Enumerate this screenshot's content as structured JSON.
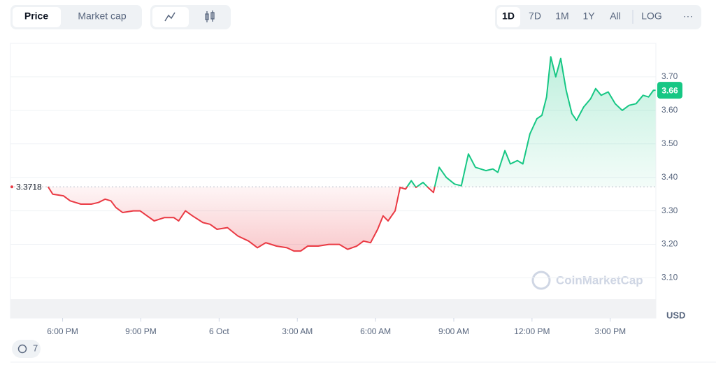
{
  "tabs": [
    "Price",
    "Market cap"
  ],
  "ranges": [
    "1D",
    "7D",
    "1M",
    "1Y",
    "All"
  ],
  "log_button": "LOG",
  "more_button": "···",
  "history_badge": "7",
  "chart_data": {
    "type": "line",
    "watermark": "CoinMarketCap",
    "y_axis_unit": "USD",
    "baseline": 3.3718,
    "current_price": 3.66,
    "x": [
      17.44,
      17.62,
      18.03,
      18.29,
      18.7,
      19.1,
      19.37,
      19.63,
      19.85,
      20.04,
      20.3,
      20.71,
      20.97,
      21.24,
      21.51,
      21.91,
      22.26,
      22.45,
      22.71,
      22.98,
      23.38,
      23.65,
      23.92,
      24.32,
      24.72,
      25.13,
      25.47,
      25.79,
      26.2,
      26.6,
      26.87,
      27.13,
      27.4,
      27.8,
      28.21,
      28.61,
      28.93,
      29.28,
      29.54,
      29.81,
      30.08,
      30.29,
      30.48,
      30.75,
      30.94,
      31.15,
      31.37,
      31.55,
      31.82,
      32.01,
      32.22,
      32.44,
      32.71,
      33.03,
      33.29,
      33.56,
      33.83,
      34.23,
      34.5,
      34.69,
      34.96,
      35.17,
      35.44,
      35.65,
      35.92,
      36.19,
      36.38,
      36.56,
      36.72,
      36.91,
      37.1,
      37.31,
      37.53,
      37.71,
      37.98,
      38.25,
      38.44,
      38.65,
      38.92,
      39.19,
      39.46,
      39.72,
      39.99,
      40.26,
      40.47,
      40.66,
      40.74
    ],
    "values": [
      3.372,
      3.35,
      3.345,
      3.33,
      3.32,
      3.32,
      3.325,
      3.335,
      3.33,
      3.31,
      3.295,
      3.3,
      3.3,
      3.285,
      3.27,
      3.28,
      3.28,
      3.27,
      3.3,
      3.285,
      3.265,
      3.26,
      3.245,
      3.25,
      3.225,
      3.21,
      3.19,
      3.205,
      3.195,
      3.19,
      3.18,
      3.18,
      3.195,
      3.195,
      3.2,
      3.2,
      3.185,
      3.195,
      3.21,
      3.205,
      3.245,
      3.285,
      3.27,
      3.3,
      3.37,
      3.365,
      3.39,
      3.37,
      3.385,
      3.37,
      3.355,
      3.43,
      3.4,
      3.38,
      3.375,
      3.47,
      3.43,
      3.42,
      3.425,
      3.415,
      3.48,
      3.44,
      3.45,
      3.44,
      3.53,
      3.575,
      3.585,
      3.64,
      3.76,
      3.7,
      3.755,
      3.66,
      3.59,
      3.57,
      3.61,
      3.635,
      3.665,
      3.645,
      3.655,
      3.62,
      3.6,
      3.615,
      3.62,
      3.645,
      3.64,
      3.66,
      3.66
    ],
    "up_color": "#16c784",
    "down_color": "#ea3943",
    "xlim": [
      16,
      40.75
    ],
    "xticks": [
      {
        "value": 18,
        "label": "6:00 PM"
      },
      {
        "value": 21,
        "label": "9:00 PM"
      },
      {
        "value": 24,
        "label": "6 Oct"
      },
      {
        "value": 27,
        "label": "3:00 AM"
      },
      {
        "value": 30,
        "label": "6:00 AM"
      },
      {
        "value": 33,
        "label": "9:00 AM"
      },
      {
        "value": 36,
        "label": "12:00 PM"
      },
      {
        "value": 39,
        "label": "3:00 PM"
      }
    ],
    "ylim": [
      2.98,
      3.8
    ],
    "yticks": [
      {
        "value": 3.1,
        "label": "3.10"
      },
      {
        "value": 3.2,
        "label": "3.20"
      },
      {
        "value": 3.3,
        "label": "3.30"
      },
      {
        "value": 3.4,
        "label": "3.40"
      },
      {
        "value": 3.5,
        "label": "3.50"
      },
      {
        "value": 3.6,
        "label": "3.60"
      },
      {
        "value": 3.7,
        "label": "3.70"
      }
    ],
    "grid": true
  }
}
